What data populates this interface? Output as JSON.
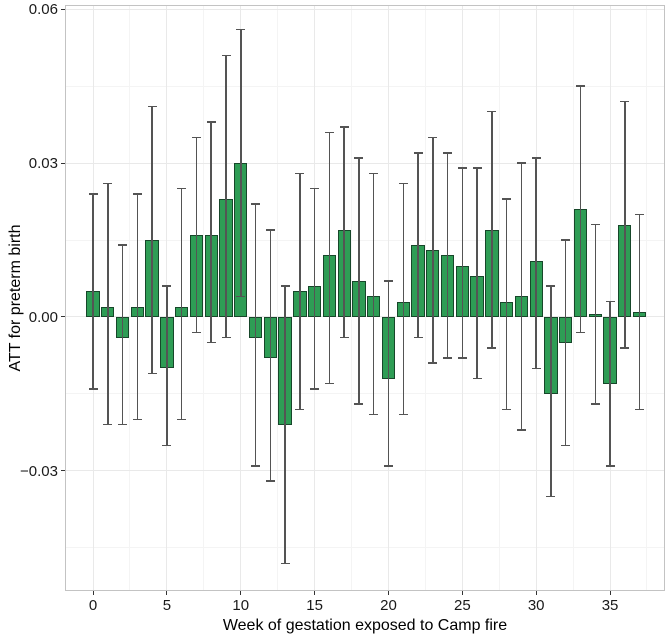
{
  "chart_data": {
    "type": "bar",
    "title": "",
    "xlabel": "Week of gestation exposed to Camp fire",
    "ylabel": "ATT for preterm birth",
    "legend": "none",
    "grid": "major+minor, very light gray on white panel",
    "xlim": [
      -1.9,
      38.72
    ],
    "ylim": [
      -0.0534,
      0.0608
    ],
    "x_tick_values": [
      0,
      5,
      10,
      15,
      20,
      25,
      30,
      35
    ],
    "x_tick_labels": [
      "0",
      "5",
      "10",
      "15",
      "20",
      "25",
      "30",
      "35"
    ],
    "x_minor_tick_values": [
      2.5,
      7.5,
      12.5,
      17.5,
      22.5,
      27.5,
      32.5,
      37.5
    ],
    "y_tick_values": [
      0.06,
      0.03,
      0.0,
      -0.03
    ],
    "y_tick_labels": [
      "0.06",
      "0.03",
      "0.00",
      "−0.03"
    ],
    "y_minor_tick_values": [
      0.045,
      0.015,
      -0.015,
      -0.045
    ],
    "bar_fill_color": "#2e9d55",
    "bar_border_color": "#17472a",
    "errorbar_color": "#545454",
    "weeks": [
      0,
      1,
      2,
      3,
      4,
      5,
      6,
      7,
      8,
      9,
      10,
      11,
      12,
      13,
      14,
      15,
      16,
      17,
      18,
      19,
      20,
      21,
      22,
      23,
      24,
      25,
      26,
      27,
      28,
      29,
      30,
      31,
      32,
      33,
      34,
      35,
      36,
      37
    ],
    "att_estimates": [
      0.005,
      0.002,
      -0.004,
      0.002,
      0.015,
      -0.01,
      0.002,
      0.016,
      0.016,
      0.023,
      0.03,
      -0.004,
      -0.008,
      -0.021,
      0.005,
      0.006,
      0.012,
      0.017,
      0.007,
      0.004,
      -0.012,
      0.003,
      0.014,
      0.013,
      0.012,
      0.01,
      0.008,
      0.017,
      0.003,
      0.004,
      0.011,
      -0.015,
      -0.005,
      0.021,
      0.0005,
      -0.013,
      0.018,
      0.001
    ],
    "ci_low": [
      -0.014,
      -0.021,
      -0.021,
      -0.02,
      -0.011,
      -0.025,
      -0.02,
      -0.003,
      -0.005,
      -0.004,
      0.004,
      -0.029,
      -0.032,
      -0.048,
      -0.018,
      -0.014,
      -0.013,
      -0.004,
      -0.017,
      -0.019,
      -0.029,
      -0.019,
      -0.004,
      -0.009,
      -0.008,
      -0.008,
      -0.012,
      -0.006,
      -0.018,
      -0.022,
      -0.01,
      -0.035,
      -0.025,
      -0.003,
      -0.017,
      -0.029,
      -0.006,
      -0.018
    ],
    "ci_high": [
      0.024,
      0.026,
      0.014,
      0.024,
      0.041,
      0.006,
      0.025,
      0.035,
      0.038,
      0.051,
      0.056,
      0.022,
      0.017,
      0.006,
      0.028,
      0.025,
      0.036,
      0.037,
      0.031,
      0.028,
      0.007,
      0.026,
      0.032,
      0.035,
      0.032,
      0.029,
      0.029,
      0.04,
      0.023,
      0.03,
      0.031,
      0.006,
      0.015,
      0.045,
      0.018,
      0.003,
      0.042,
      0.02
    ]
  }
}
